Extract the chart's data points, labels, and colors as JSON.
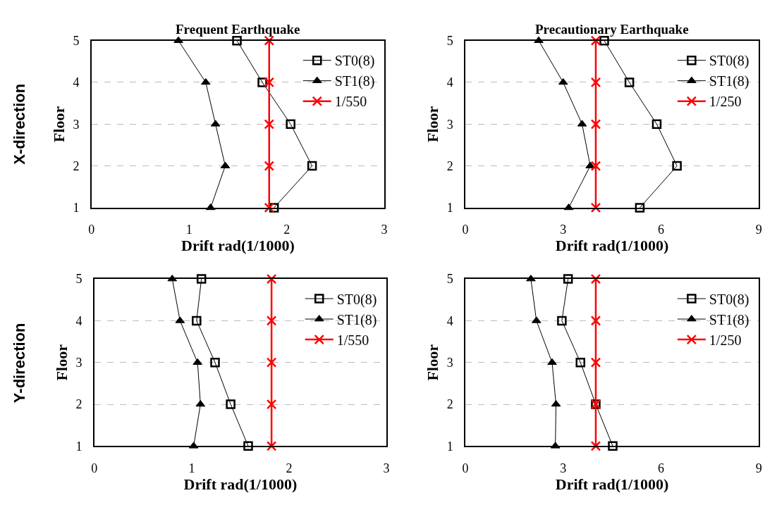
{
  "chart_data": [
    {
      "type": "line",
      "title": "Frequent Earthquake",
      "xlabel": "Drift rad(1/1000)",
      "ylabel": "Floor",
      "annotations": [
        "X-direction"
      ],
      "orientation": "horizontal",
      "categories": [
        "5",
        "4",
        "3",
        "2",
        "1"
      ],
      "xlim": [
        0,
        3
      ],
      "xticks": [
        0,
        1,
        2,
        3
      ],
      "grid": "y",
      "legend": "top right",
      "series": [
        {
          "name": "ST0(8)",
          "color": "#000000",
          "marker": "square",
          "values": [
            1.49,
            1.75,
            2.04,
            2.26,
            1.87
          ]
        },
        {
          "name": "ST1(8)",
          "color": "#000000",
          "marker": "triangle",
          "values": [
            0.89,
            1.17,
            1.27,
            1.37,
            1.22
          ]
        },
        {
          "name": "1/550",
          "color": "#ff0000",
          "marker": "cross",
          "values": [
            1.82,
            1.82,
            1.82,
            1.82,
            1.82
          ]
        }
      ]
    },
    {
      "type": "line",
      "title": "Precautionary Earthquake",
      "xlabel": "Drift rad(1/1000)",
      "ylabel": "Floor",
      "orientation": "horizontal",
      "categories": [
        "5",
        "4",
        "3",
        "2",
        "1"
      ],
      "xlim": [
        0,
        9
      ],
      "xticks": [
        0,
        3,
        6,
        9
      ],
      "grid": "y",
      "legend": "top right",
      "series": [
        {
          "name": "ST0(8)",
          "color": "#000000",
          "marker": "square",
          "values": [
            4.26,
            5.03,
            5.87,
            6.49,
            5.35
          ]
        },
        {
          "name": "ST1(8)",
          "color": "#000000",
          "marker": "triangle",
          "values": [
            2.25,
            3.0,
            3.58,
            3.83,
            3.17
          ]
        },
        {
          "name": "1/250",
          "color": "#ff0000",
          "marker": "cross",
          "values": [
            4.0,
            4.0,
            4.0,
            4.0,
            4.0
          ]
        }
      ]
    },
    {
      "type": "line",
      "xlabel": "Drift rad(1/1000)",
      "ylabel": "Floor",
      "annotations": [
        "Y-direction"
      ],
      "orientation": "horizontal",
      "categories": [
        "5",
        "4",
        "3",
        "2",
        "1"
      ],
      "xlim": [
        0,
        3
      ],
      "xticks": [
        0,
        1,
        2,
        3
      ],
      "grid": "y",
      "legend": "top right",
      "series": [
        {
          "name": "ST0(8)",
          "color": "#000000",
          "marker": "square",
          "values": [
            1.1,
            1.05,
            1.24,
            1.4,
            1.58
          ]
        },
        {
          "name": "ST1(8)",
          "color": "#000000",
          "marker": "triangle",
          "values": [
            0.8,
            0.88,
            1.06,
            1.09,
            1.02
          ]
        },
        {
          "name": "1/550",
          "color": "#ff0000",
          "marker": "cross",
          "values": [
            1.82,
            1.82,
            1.82,
            1.82,
            1.82
          ]
        }
      ]
    },
    {
      "type": "line",
      "xlabel": "Drift rad(1/1000)",
      "ylabel": "Floor",
      "orientation": "horizontal",
      "categories": [
        "5",
        "4",
        "3",
        "2",
        "1"
      ],
      "xlim": [
        0,
        9
      ],
      "xticks": [
        0,
        3,
        6,
        9
      ],
      "grid": "y",
      "legend": "top right",
      "series": [
        {
          "name": "ST0(8)",
          "color": "#000000",
          "marker": "square",
          "values": [
            3.15,
            2.96,
            3.53,
            4.0,
            4.52
          ]
        },
        {
          "name": "ST1(8)",
          "color": "#000000",
          "marker": "triangle",
          "values": [
            2.01,
            2.18,
            2.66,
            2.78,
            2.76
          ]
        },
        {
          "name": "1/250",
          "color": "#ff0000",
          "marker": "cross",
          "values": [
            4.0,
            4.0,
            4.0,
            4.0,
            4.0
          ]
        }
      ]
    }
  ]
}
